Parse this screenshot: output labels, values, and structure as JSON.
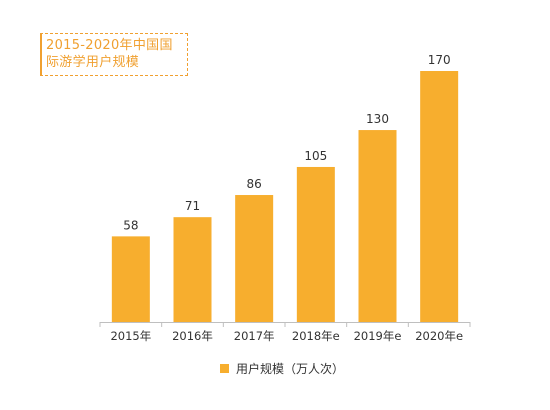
{
  "chart_data": {
    "type": "bar",
    "title": "2015-2020年中国国际游学用户规模",
    "categories": [
      "2015年",
      "2016年",
      "2017年",
      "2018年e",
      "2019年e",
      "2020年e"
    ],
    "series": [
      {
        "name": "用户规模（万人次）",
        "values": [
          58,
          71,
          86,
          105,
          130,
          170
        ]
      }
    ],
    "data_labels": [
      "58",
      "71",
      "86",
      "105",
      "130",
      "170"
    ],
    "xlabel": "",
    "ylabel": "",
    "ylim": [
      0,
      170
    ],
    "grid": false,
    "legend_position": "bottom",
    "bar_color": "#f7ae2e",
    "axis_color": "#bfbfbf"
  }
}
